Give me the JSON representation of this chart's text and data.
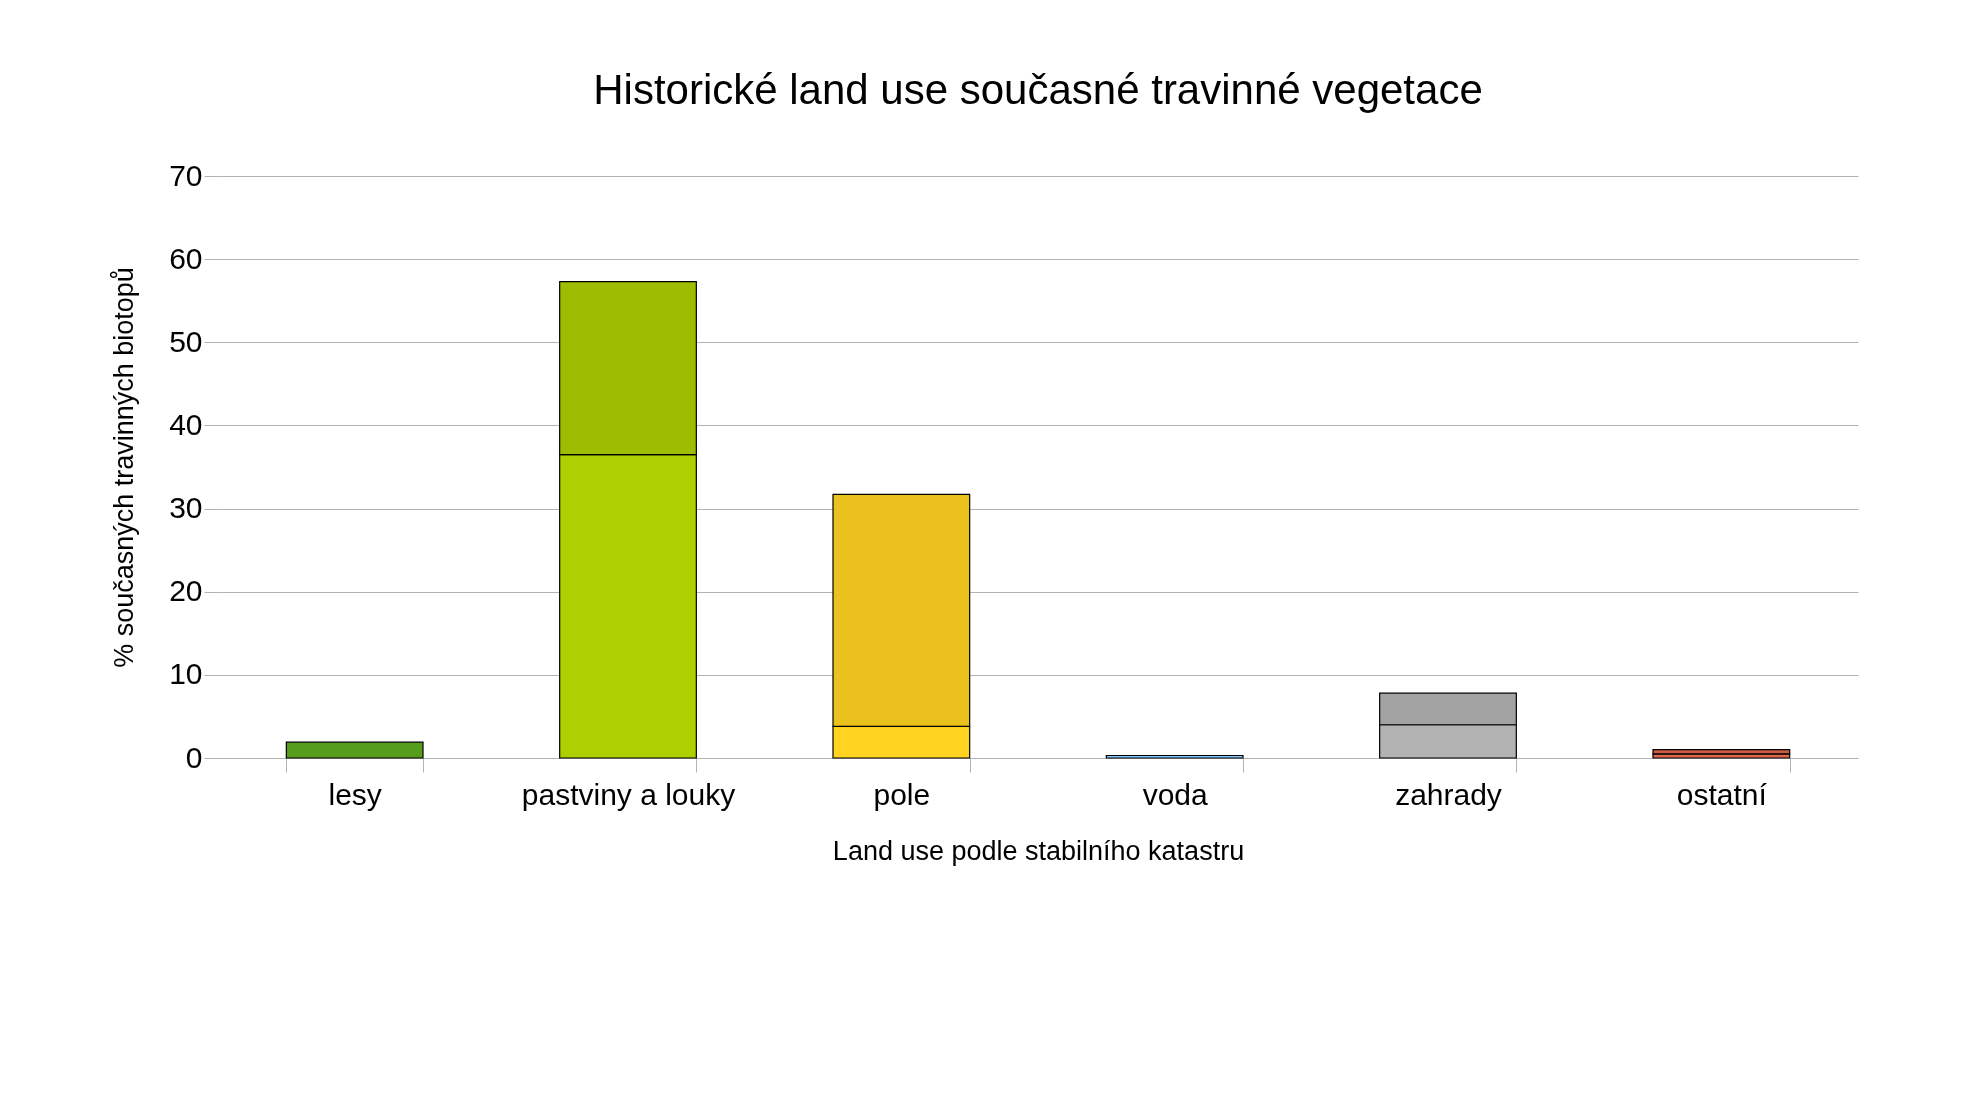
{
  "chart_data": {
    "type": "bar",
    "stacked": true,
    "title": "Historické land use současné travinné vegetace",
    "xlabel": "Land use podle stabilního katastru",
    "ylabel": "% současných travinných biotopů",
    "categories": [
      "lesy",
      "pastviny a louky",
      "pole",
      "voda",
      "zahrady",
      "ostatní"
    ],
    "series": [
      {
        "colors": [
          "#579d1c",
          "#aecf00",
          "#ffd320",
          "#83caff",
          "#b3b3b3",
          "#e0664a"
        ],
        "values": [
          1.9,
          36.5,
          3.8,
          0.3,
          4.0,
          0.5
        ]
      },
      {
        "colors": [
          "#579d1c",
          "#9fbd00",
          "#ebc21d",
          "#83caff",
          "#a3a3a3",
          "#cc5c43"
        ],
        "values": [
          null,
          20.8,
          27.9,
          null,
          3.8,
          0.5
        ]
      }
    ],
    "ylim": [
      0,
      70
    ],
    "yticks": [
      0,
      10,
      20,
      30,
      40,
      50,
      60,
      70
    ],
    "grid": "y"
  }
}
